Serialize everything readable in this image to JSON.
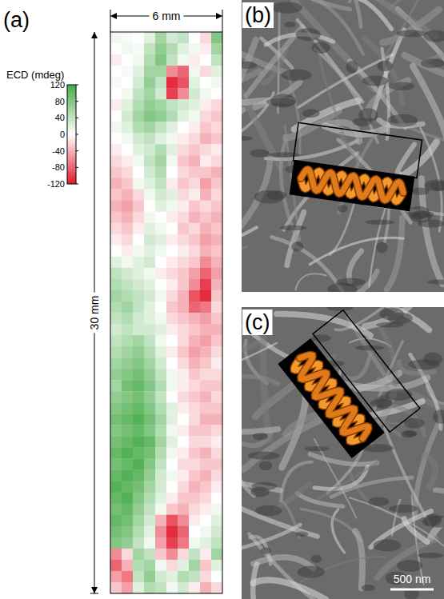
{
  "chart_data": {
    "type": "heatmap",
    "label": "(a)",
    "colorbar_title": "ECD (mdeg)",
    "colorbar_range": [
      -120,
      120
    ],
    "colorbar_ticks": [
      120,
      80,
      40,
      0,
      -40,
      -80,
      -120
    ],
    "width_label": "6 mm",
    "height_label": "30 mm",
    "cells": [
      [
        10,
        5,
        0,
        20,
        60,
        30,
        40,
        0,
        -20,
        80
      ],
      [
        0,
        10,
        5,
        40,
        70,
        50,
        20,
        10,
        -10,
        60
      ],
      [
        -10,
        0,
        10,
        50,
        80,
        40,
        10,
        -10,
        0,
        40
      ],
      [
        0,
        5,
        20,
        60,
        60,
        -60,
        -80,
        10,
        -20,
        20
      ],
      [
        5,
        0,
        30,
        70,
        40,
        -110,
        -90,
        20,
        0,
        10
      ],
      [
        0,
        10,
        40,
        60,
        30,
        -100,
        -60,
        30,
        10,
        0
      ],
      [
        -10,
        20,
        50,
        70,
        60,
        40,
        30,
        20,
        -10,
        -20
      ],
      [
        0,
        30,
        60,
        80,
        70,
        50,
        20,
        10,
        -20,
        -30
      ],
      [
        10,
        20,
        50,
        60,
        40,
        20,
        0,
        -10,
        -30,
        -20
      ],
      [
        0,
        10,
        30,
        40,
        20,
        10,
        -10,
        -20,
        -40,
        -30
      ],
      [
        -10,
        0,
        20,
        30,
        50,
        20,
        -20,
        -30,
        -20,
        -10
      ],
      [
        -20,
        -10,
        10,
        40,
        60,
        10,
        -30,
        -40,
        -10,
        -20
      ],
      [
        -30,
        -20,
        0,
        30,
        50,
        0,
        -20,
        -30,
        -30,
        -40
      ],
      [
        -40,
        -30,
        10,
        20,
        40,
        -10,
        -30,
        -20,
        -50,
        -30
      ],
      [
        -30,
        -40,
        -20,
        10,
        30,
        20,
        -20,
        -10,
        -40,
        -20
      ],
      [
        -40,
        -50,
        -30,
        0,
        20,
        10,
        -10,
        -30,
        -20,
        -30
      ],
      [
        -30,
        -40,
        -20,
        10,
        0,
        -10,
        -20,
        -40,
        -30,
        -40
      ],
      [
        -20,
        -30,
        -10,
        20,
        10,
        0,
        -30,
        -20,
        -40,
        -30
      ],
      [
        -10,
        -20,
        0,
        30,
        20,
        -10,
        -20,
        -30,
        -50,
        -40
      ],
      [
        0,
        -10,
        10,
        20,
        10,
        0,
        -10,
        -20,
        -40,
        -30
      ],
      [
        20,
        10,
        20,
        30,
        0,
        -10,
        -20,
        -30,
        -60,
        -40
      ],
      [
        40,
        30,
        20,
        10,
        -10,
        -20,
        -30,
        -50,
        -80,
        -50
      ],
      [
        50,
        40,
        30,
        20,
        0,
        -10,
        -30,
        -60,
        -100,
        -40
      ],
      [
        60,
        50,
        40,
        30,
        10,
        -20,
        -40,
        -90,
        -110,
        -30
      ],
      [
        50,
        60,
        40,
        20,
        0,
        -30,
        -40,
        -80,
        -70,
        -20
      ],
      [
        40,
        50,
        30,
        20,
        10,
        -20,
        -30,
        -40,
        -50,
        -30
      ],
      [
        30,
        40,
        30,
        30,
        20,
        -10,
        -20,
        -30,
        -40,
        -40
      ],
      [
        40,
        50,
        60,
        40,
        10,
        0,
        -20,
        -40,
        -50,
        -30
      ],
      [
        50,
        60,
        70,
        50,
        20,
        -10,
        -30,
        -50,
        -40,
        -20
      ],
      [
        60,
        70,
        80,
        60,
        30,
        0,
        -20,
        -40,
        -30,
        -10
      ],
      [
        70,
        80,
        90,
        70,
        40,
        10,
        -10,
        -30,
        -20,
        -20
      ],
      [
        60,
        90,
        100,
        80,
        50,
        10,
        -10,
        -20,
        -30,
        -30
      ],
      [
        70,
        80,
        90,
        70,
        40,
        0,
        -20,
        -30,
        -40,
        -20
      ],
      [
        80,
        90,
        100,
        80,
        50,
        20,
        -10,
        -20,
        -30,
        -30
      ],
      [
        90,
        100,
        110,
        90,
        60,
        20,
        0,
        -20,
        -40,
        -40
      ],
      [
        80,
        90,
        100,
        80,
        50,
        10,
        -10,
        -30,
        -30,
        -20
      ],
      [
        90,
        100,
        110,
        100,
        60,
        20,
        0,
        -20,
        -20,
        -10
      ],
      [
        100,
        110,
        100,
        90,
        50,
        10,
        -10,
        -30,
        -40,
        -20
      ],
      [
        90,
        100,
        110,
        80,
        40,
        0,
        -20,
        -20,
        -30,
        -30
      ],
      [
        100,
        110,
        100,
        70,
        30,
        10,
        -10,
        -30,
        -40,
        -20
      ],
      [
        110,
        100,
        90,
        60,
        30,
        0,
        -20,
        -40,
        -30,
        -10
      ],
      [
        100,
        110,
        80,
        50,
        20,
        -10,
        -30,
        -30,
        -20,
        0
      ],
      [
        90,
        100,
        70,
        40,
        10,
        -30,
        -40,
        -20,
        -10,
        10
      ],
      [
        100,
        90,
        60,
        30,
        -40,
        -90,
        -60,
        -10,
        0,
        20
      ],
      [
        90,
        80,
        50,
        20,
        -60,
        -110,
        -80,
        0,
        10,
        30
      ],
      [
        80,
        70,
        40,
        10,
        -50,
        -100,
        -70,
        10,
        20,
        40
      ],
      [
        -60,
        -20,
        60,
        40,
        -30,
        -60,
        -20,
        40,
        -10,
        60
      ],
      [
        -80,
        -40,
        50,
        60,
        10,
        -20,
        20,
        60,
        -30,
        20
      ],
      [
        -50,
        -70,
        40,
        70,
        30,
        20,
        50,
        40,
        -20,
        0
      ],
      [
        -30,
        -50,
        20,
        50,
        40,
        10,
        30,
        -10,
        -40,
        -20
      ]
    ]
  },
  "images": [
    {
      "label": "(b)"
    },
    {
      "label": "(c)",
      "scale_bar": "500 nm"
    }
  ]
}
